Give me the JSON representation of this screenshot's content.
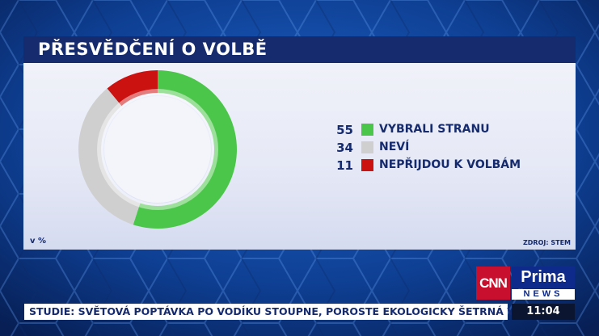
{
  "title": "PŘESVĚDČENÍ O VOLBĚ",
  "unit": "v %",
  "source": "ZDROJ: STEM",
  "chart_data": {
    "type": "pie",
    "categories": [
      "VYBRALI STRANU",
      "NEVÍ",
      "NEPŘIJDOU K VOLBÁM"
    ],
    "values": [
      55,
      34,
      11
    ],
    "colors": [
      "#4cc64a",
      "#cfcfcf",
      "#cc1111"
    ],
    "donut": true
  },
  "legend": [
    {
      "value": "55",
      "label": "VYBRALI STRANU",
      "color": "#4cc64a"
    },
    {
      "value": "34",
      "label": "NEVÍ",
      "color": "#cfcfcf"
    },
    {
      "value": "11",
      "label": "NEPŘIJDOU K VOLBÁM",
      "color": "#cc1111"
    }
  ],
  "brand": {
    "cnn": "CNN",
    "prima": "Prima",
    "news": "NEWS"
  },
  "ticker": "STUDIE: SVĚTOVÁ POPTÁVKA PO VODÍKU STOUPNE, POROSTE EKOLOGICKY ŠETRNÁ VÝROBA.",
  "time": "11:04"
}
